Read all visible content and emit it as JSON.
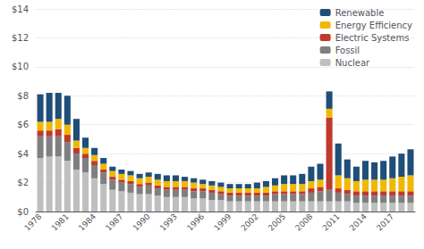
{
  "chart_data": {
    "type": "bar",
    "stacked": true,
    "grid": true,
    "legend": "upper right",
    "categories": [
      "1978",
      null,
      null,
      "1981",
      null,
      null,
      "1984",
      null,
      null,
      "1987",
      null,
      null,
      "1990",
      null,
      null,
      "1993",
      null,
      null,
      "1996",
      null,
      null,
      "1999",
      null,
      null,
      "2002",
      null,
      null,
      "2005",
      null,
      null,
      "2008",
      null,
      null,
      "2011",
      null,
      null,
      "2014",
      null,
      null,
      "2017",
      null,
      null
    ],
    "series": [
      {
        "name": "Nuclear",
        "color": "#bfbfbf",
        "values": [
          3.7,
          3.8,
          3.8,
          3.5,
          2.9,
          2.7,
          2.3,
          1.9,
          1.5,
          1.4,
          1.3,
          1.2,
          1.2,
          1.1,
          1.0,
          1.0,
          1.0,
          0.9,
          0.9,
          0.8,
          0.8,
          0.7,
          0.7,
          0.7,
          0.7,
          0.7,
          0.7,
          0.7,
          0.7,
          0.7,
          0.7,
          0.7,
          0.7,
          0.7,
          0.7,
          0.6,
          0.6,
          0.6,
          0.6,
          0.6,
          0.6,
          0.6
        ]
      },
      {
        "name": "Fossil",
        "color": "#7f7f7f",
        "values": [
          1.5,
          1.4,
          1.4,
          1.3,
          1.1,
          1.0,
          0.9,
          0.8,
          0.7,
          0.6,
          0.6,
          0.5,
          0.6,
          0.5,
          0.5,
          0.5,
          0.5,
          0.5,
          0.5,
          0.5,
          0.4,
          0.4,
          0.4,
          0.4,
          0.4,
          0.4,
          0.5,
          0.5,
          0.5,
          0.5,
          0.6,
          0.7,
          0.8,
          0.6,
          0.5,
          0.5,
          0.5,
          0.5,
          0.5,
          0.5,
          0.5,
          0.5
        ]
      },
      {
        "name": "Electric Systems",
        "color": "#c0392b",
        "values": [
          0.4,
          0.4,
          0.5,
          0.5,
          0.4,
          0.3,
          0.3,
          0.2,
          0.2,
          0.2,
          0.2,
          0.2,
          0.2,
          0.2,
          0.2,
          0.2,
          0.2,
          0.2,
          0.2,
          0.2,
          0.2,
          0.2,
          0.2,
          0.2,
          0.2,
          0.2,
          0.2,
          0.2,
          0.2,
          0.2,
          0.3,
          0.3,
          5.0,
          0.3,
          0.3,
          0.3,
          0.3,
          0.3,
          0.3,
          0.3,
          0.3,
          0.3
        ]
      },
      {
        "name": "Energy Efficiency",
        "color": "#f0b800",
        "values": [
          0.6,
          0.6,
          0.7,
          0.7,
          0.5,
          0.4,
          0.4,
          0.4,
          0.4,
          0.4,
          0.4,
          0.4,
          0.4,
          0.4,
          0.4,
          0.4,
          0.4,
          0.4,
          0.3,
          0.3,
          0.3,
          0.3,
          0.3,
          0.3,
          0.3,
          0.4,
          0.4,
          0.5,
          0.5,
          0.5,
          0.5,
          0.5,
          0.6,
          0.9,
          0.8,
          0.7,
          0.8,
          0.8,
          0.8,
          0.9,
          1.0,
          1.1
        ]
      },
      {
        "name": "Renewable",
        "color": "#1f4e79",
        "values": [
          1.9,
          2.0,
          1.8,
          2.0,
          1.5,
          0.7,
          0.5,
          0.4,
          0.3,
          0.3,
          0.3,
          0.3,
          0.3,
          0.4,
          0.4,
          0.4,
          0.3,
          0.3,
          0.3,
          0.3,
          0.3,
          0.3,
          0.3,
          0.3,
          0.4,
          0.4,
          0.5,
          0.6,
          0.6,
          0.7,
          1.0,
          1.1,
          1.2,
          2.2,
          1.3,
          1.0,
          1.3,
          1.2,
          1.3,
          1.5,
          1.6,
          1.8
        ]
      }
    ],
    "ylim": [
      0,
      14
    ],
    "yticks": [
      {
        "value": 0,
        "label": "$0"
      },
      {
        "value": 2,
        "label": "$2"
      },
      {
        "value": 4,
        "label": "$4"
      },
      {
        "value": 6,
        "label": "$6"
      },
      {
        "value": 8,
        "label": "$8"
      },
      {
        "value": 10,
        "label": "$10"
      },
      {
        "value": 12,
        "label": "$12"
      },
      {
        "value": 14,
        "label": "$14"
      }
    ]
  }
}
